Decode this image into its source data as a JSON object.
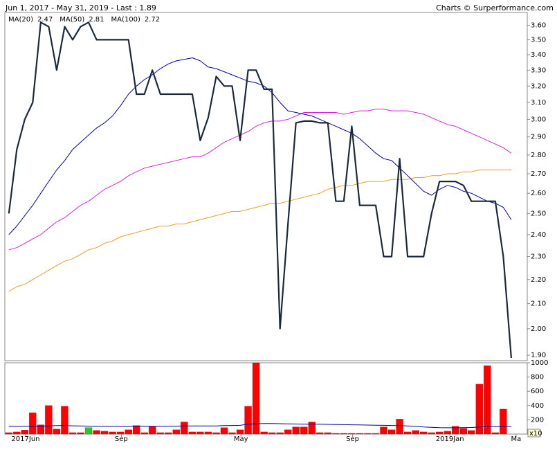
{
  "chart_data": [
    {
      "type": "line",
      "title": "Jun 1, 2017 - May 31, 2019 - Last : 1.89",
      "credit": "Charts © Surperformance.com",
      "log": true,
      "ylim": [
        1.88,
        3.69
      ],
      "xlim": [
        -0.5,
        65
      ],
      "yticks": [
        {
          "value": 1.9,
          "label": "1.90"
        },
        {
          "value": 2.0,
          "label": "2.00"
        },
        {
          "value": 2.1,
          "label": "2.10"
        },
        {
          "value": 2.2,
          "label": "2.20"
        },
        {
          "value": 2.3,
          "label": "2.30"
        },
        {
          "value": 2.4,
          "label": "2.40"
        },
        {
          "value": 2.5,
          "label": "2.50"
        },
        {
          "value": 2.6,
          "label": "2.60"
        },
        {
          "value": 2.7,
          "label": "2.70"
        },
        {
          "value": 2.8,
          "label": "2.80"
        },
        {
          "value": 2.9,
          "label": "2.90"
        },
        {
          "value": 3.0,
          "label": "3.00"
        },
        {
          "value": 3.1,
          "label": "3.10"
        },
        {
          "value": 3.2,
          "label": "3.20"
        },
        {
          "value": 3.3,
          "label": "3.30"
        },
        {
          "value": 3.4,
          "label": "3.40"
        },
        {
          "value": 3.5,
          "label": "3.50"
        },
        {
          "value": 3.6,
          "label": "3.60"
        }
      ],
      "xticks": [
        {
          "value": 2.1,
          "label": "2017Jun"
        },
        {
          "value": 14.1,
          "label": "Sep"
        },
        {
          "value": 29.1,
          "label": "May"
        },
        {
          "value": 43.1,
          "label": "Sep"
        },
        {
          "value": 55.3,
          "label": "2019Jan"
        },
        {
          "value": 63.6,
          "label": "Ma"
        }
      ],
      "x": [
        0,
        1,
        2,
        3,
        4,
        5,
        6,
        7,
        8,
        9,
        10,
        11,
        12,
        13,
        14,
        15,
        16,
        17,
        18,
        19,
        20,
        21,
        22,
        23,
        24,
        25,
        26,
        27,
        28,
        29,
        30,
        31,
        32,
        33,
        34,
        35,
        36,
        37,
        38,
        39,
        40,
        41,
        42,
        43,
        44,
        45,
        46,
        47,
        48,
        49,
        50,
        51,
        52,
        53,
        54,
        55,
        56,
        57,
        58,
        59,
        60,
        61,
        62,
        63
      ],
      "series": [
        {
          "color": "#1a2a3a",
          "values": [
            2.5,
            2.83,
            3.0,
            3.1,
            3.62,
            3.59,
            3.3,
            3.59,
            3.5,
            3.59,
            3.62,
            3.5,
            3.5,
            3.5,
            3.5,
            3.5,
            3.15,
            3.15,
            3.3,
            3.15,
            3.15,
            3.15,
            3.15,
            3.15,
            2.88,
            3.01,
            3.26,
            3.2,
            3.2,
            2.88,
            3.3,
            3.3,
            3.18,
            3.18,
            2.0,
            2.45,
            2.98,
            2.99,
            2.99,
            2.98,
            2.98,
            2.56,
            2.56,
            2.96,
            2.54,
            2.54,
            2.54,
            2.3,
            2.3,
            2.78,
            2.3,
            2.3,
            2.3,
            2.5,
            2.66,
            2.66,
            2.66,
            2.64,
            2.56,
            2.56,
            2.56,
            2.56,
            2.3,
            1.89
          ]
        },
        {
          "name": "MA(20)",
          "color": "#0000aa",
          "values": [
            2.4,
            2.44,
            2.49,
            2.54,
            2.6,
            2.66,
            2.72,
            2.77,
            2.83,
            2.87,
            2.91,
            2.95,
            2.98,
            3.02,
            3.08,
            3.15,
            3.2,
            3.24,
            3.27,
            3.31,
            3.34,
            3.36,
            3.37,
            3.38,
            3.36,
            3.32,
            3.31,
            3.29,
            3.27,
            3.25,
            3.23,
            3.22,
            3.2,
            3.16,
            3.1,
            3.05,
            3.04,
            3.03,
            3.02,
            3.0,
            2.98,
            2.96,
            2.94,
            2.92,
            2.89,
            2.85,
            2.81,
            2.78,
            2.77,
            2.73,
            2.69,
            2.65,
            2.61,
            2.59,
            2.62,
            2.64,
            2.63,
            2.61,
            2.6,
            2.58,
            2.56,
            2.55,
            2.53,
            2.47
          ]
        },
        {
          "name": "MA(50)",
          "color": "#dd22dd",
          "values": [
            2.33,
            2.34,
            2.36,
            2.38,
            2.4,
            2.43,
            2.46,
            2.48,
            2.51,
            2.54,
            2.56,
            2.59,
            2.62,
            2.64,
            2.66,
            2.69,
            2.71,
            2.73,
            2.74,
            2.75,
            2.76,
            2.77,
            2.78,
            2.79,
            2.79,
            2.81,
            2.84,
            2.87,
            2.89,
            2.91,
            2.93,
            2.96,
            2.98,
            2.99,
            2.99,
            3.0,
            3.02,
            3.04,
            3.04,
            3.04,
            3.04,
            3.04,
            3.03,
            3.04,
            3.05,
            3.05,
            3.06,
            3.06,
            3.05,
            3.05,
            3.05,
            3.04,
            3.03,
            3.01,
            2.99,
            2.97,
            2.96,
            2.94,
            2.92,
            2.9,
            2.88,
            2.86,
            2.84,
            2.81
          ]
        },
        {
          "name": "MA(100)",
          "color": "#e8a020",
          "values": [
            2.15,
            2.17,
            2.18,
            2.2,
            2.22,
            2.24,
            2.26,
            2.28,
            2.29,
            2.31,
            2.33,
            2.34,
            2.36,
            2.37,
            2.39,
            2.4,
            2.41,
            2.42,
            2.43,
            2.44,
            2.44,
            2.45,
            2.45,
            2.46,
            2.47,
            2.48,
            2.49,
            2.5,
            2.51,
            2.51,
            2.52,
            2.53,
            2.54,
            2.55,
            2.55,
            2.56,
            2.57,
            2.58,
            2.59,
            2.6,
            2.62,
            2.63,
            2.64,
            2.64,
            2.65,
            2.66,
            2.66,
            2.66,
            2.67,
            2.67,
            2.67,
            2.68,
            2.68,
            2.69,
            2.69,
            2.7,
            2.7,
            2.71,
            2.71,
            2.72,
            2.72,
            2.72,
            2.72,
            2.72
          ]
        }
      ]
    },
    {
      "type": "bar",
      "unit_label": "x10",
      "ylim": [
        0,
        1000
      ],
      "yticks": [
        200,
        400,
        600,
        800,
        1000
      ],
      "xlim": [
        -0.5,
        65
      ],
      "x": [
        0,
        1,
        2,
        3,
        4,
        5,
        6,
        7,
        8,
        9,
        10,
        11,
        12,
        13,
        14,
        15,
        16,
        17,
        18,
        19,
        20,
        21,
        22,
        23,
        24,
        25,
        26,
        27,
        28,
        29,
        30,
        31,
        32,
        33,
        34,
        35,
        36,
        37,
        38,
        39,
        40,
        41,
        42,
        43,
        44,
        45,
        46,
        47,
        48,
        49,
        50,
        51,
        52,
        53,
        54,
        55,
        56,
        57,
        58,
        59,
        60,
        61,
        62,
        63
      ],
      "values": [
        20,
        30,
        55,
        300,
        130,
        400,
        70,
        390,
        20,
        20,
        90,
        50,
        40,
        30,
        30,
        60,
        120,
        20,
        110,
        20,
        20,
        60,
        170,
        30,
        30,
        30,
        20,
        90,
        20,
        60,
        390,
        1000,
        30,
        20,
        20,
        60,
        100,
        100,
        170,
        20,
        20,
        10,
        10,
        10,
        10,
        10,
        10,
        100,
        60,
        210,
        30,
        50,
        30,
        20,
        30,
        40,
        110,
        80,
        50,
        700,
        960,
        20,
        350,
        0
      ],
      "colors": [
        "#ff0000",
        "#ff0000",
        "#ff0000",
        "#ff0000",
        "#ff0000",
        "#ff0000",
        "#ff0000",
        "#ff0000",
        "#ff0000",
        "#ff0000",
        "#22cc22",
        "#ff0000",
        "#ff0000",
        "#ff0000",
        "#ff0000",
        "#ff0000",
        "#ff0000",
        "#ff0000",
        "#ff0000",
        "#ff0000",
        "#ff0000",
        "#ff0000",
        "#ff0000",
        "#ff0000",
        "#ff0000",
        "#ff0000",
        "#ff0000",
        "#ff0000",
        "#ff0000",
        "#ff0000",
        "#ff0000",
        "#ff0000",
        "#ff0000",
        "#ff0000",
        "#ff0000",
        "#ff0000",
        "#ff0000",
        "#ff0000",
        "#ff0000",
        "#ff0000",
        "#ff0000",
        "#ff0000",
        "#ff0000",
        "#ff0000",
        "#ff0000",
        "#ff0000",
        "#ff0000",
        "#ff0000",
        "#ff0000",
        "#ff0000",
        "#ff0000",
        "#ff0000",
        "#ff0000",
        "#ff0000",
        "#ff0000",
        "#ff0000",
        "#ff0000",
        "#ff0000",
        "#ff0000",
        "#ff0000",
        "#ff0000",
        "#ff0000",
        "#ff0000",
        "#ff0000"
      ],
      "line_color": "#0000aa",
      "line_values": [
        110,
        110,
        110,
        110,
        112,
        115,
        118,
        118,
        116,
        114,
        112,
        110,
        110,
        108,
        108,
        108,
        110,
        110,
        110,
        110,
        112,
        112,
        115,
        115,
        115,
        115,
        115,
        118,
        120,
        122,
        140,
        145,
        148,
        148,
        146,
        144,
        142,
        140,
        140,
        138,
        136,
        134,
        132,
        130,
        128,
        126,
        124,
        122,
        120,
        118,
        115,
        110,
        100,
        95,
        90,
        88,
        88,
        90,
        92,
        100,
        104,
        106,
        106,
        106
      ]
    }
  ]
}
